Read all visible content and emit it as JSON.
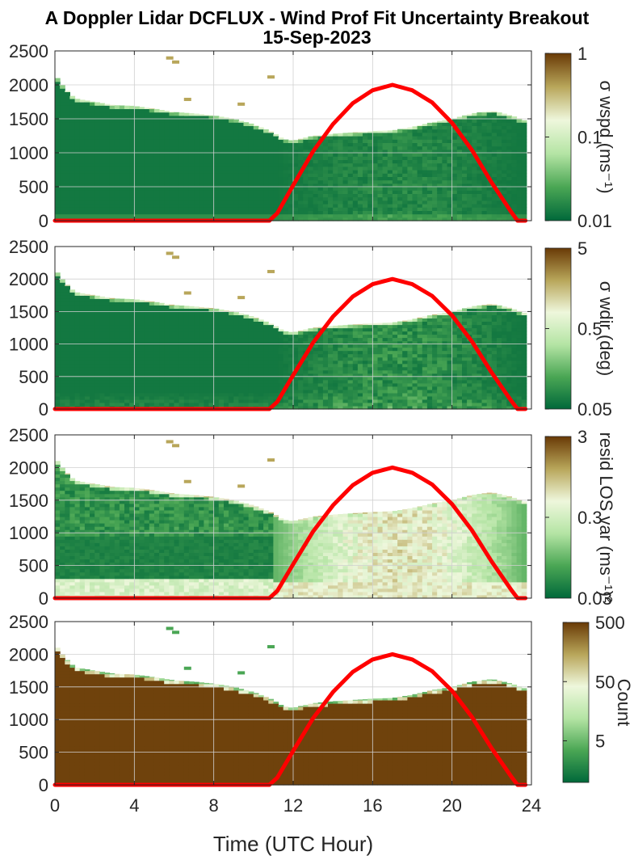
{
  "figure": {
    "title_line1": "A Doppler Lidar DCFLUX - Wind Prof Fit Uncertainty Breakout",
    "title_line2": "15-Sep-2023",
    "xlabel": "Time (UTC Hour)"
  },
  "colors": {
    "green_dark": "#00683a",
    "green_mid": "#4aa654",
    "green_light": "#b4e4a4",
    "pale": "#eef7dc",
    "olive": "#b8a65a",
    "brown": "#693a06",
    "sun_curve": "#ff0000"
  },
  "chart_data": [
    {
      "type": "heatmap",
      "panel": "sigma_wspd",
      "x_range": [
        0,
        24
      ],
      "x_ticks": [
        0,
        4,
        8,
        12,
        16,
        20,
        24
      ],
      "ylim": [
        0,
        2500
      ],
      "y_ticks": [
        0,
        500,
        1000,
        1500,
        2000,
        2500
      ],
      "grid": true,
      "colorbar": {
        "label": "σ wspd (ms⁻¹)",
        "scale": "log",
        "range": [
          0.01,
          1
        ],
        "ticks": [
          "0.01",
          "0.1",
          "1"
        ]
      },
      "data_top_m": {
        "x": [
          0,
          0.5,
          1,
          2,
          3,
          4,
          5,
          6,
          7,
          8,
          9,
          10,
          11,
          11.5,
          12,
          13,
          14,
          15,
          16,
          17,
          18,
          19,
          20,
          21,
          22,
          23,
          23.6
        ],
        "y": [
          2150,
          1950,
          1800,
          1750,
          1700,
          1690,
          1650,
          1600,
          1580,
          1550,
          1500,
          1420,
          1300,
          1200,
          1180,
          1250,
          1280,
          1300,
          1320,
          1330,
          1380,
          1450,
          1500,
          1580,
          1620,
          1550,
          1480
        ]
      },
      "typical_value": "low (mostly 0.01-0.05) with lighter areas in afternoon"
    },
    {
      "type": "heatmap",
      "panel": "sigma_wdir",
      "x_range": [
        0,
        24
      ],
      "x_ticks": [
        0,
        4,
        8,
        12,
        16,
        20,
        24
      ],
      "ylim": [
        0,
        2500
      ],
      "y_ticks": [
        0,
        500,
        1000,
        1500,
        2000,
        2500
      ],
      "grid": true,
      "colorbar": {
        "label": "σ wdir (deg)",
        "scale": "log",
        "range": [
          0.05,
          5
        ],
        "ticks": [
          "0.05",
          "0.5",
          "5"
        ]
      },
      "data_top_m": {
        "x": [
          0,
          0.5,
          1,
          2,
          3,
          4,
          5,
          6,
          7,
          8,
          9,
          10,
          11,
          11.5,
          12,
          13,
          14,
          15,
          16,
          17,
          18,
          19,
          20,
          21,
          22,
          23,
          23.6
        ],
        "y": [
          2150,
          1950,
          1800,
          1750,
          1700,
          1690,
          1650,
          1600,
          1580,
          1550,
          1500,
          1420,
          1300,
          1200,
          1180,
          1250,
          1280,
          1300,
          1320,
          1330,
          1380,
          1450,
          1500,
          1580,
          1620,
          1550,
          1480
        ]
      },
      "typical_value": "low with lighter greens near surface and in afternoon"
    },
    {
      "type": "heatmap",
      "panel": "resid_los_var",
      "x_range": [
        0,
        24
      ],
      "x_ticks": [
        0,
        4,
        8,
        12,
        16,
        20,
        24
      ],
      "ylim": [
        0,
        2500
      ],
      "y_ticks": [
        0,
        500,
        1000,
        1500,
        2000,
        2500
      ],
      "grid": true,
      "colorbar": {
        "label": "resid LOS var (ms⁻¹)²",
        "scale": "log",
        "range": [
          0.03,
          3
        ],
        "ticks": [
          "0.03",
          "0.3",
          "3"
        ]
      },
      "data_top_m": {
        "x": [
          0,
          0.5,
          1,
          2,
          3,
          4,
          5,
          6,
          7,
          8,
          9,
          10,
          11,
          11.5,
          12,
          13,
          14,
          15,
          16,
          17,
          18,
          19,
          20,
          21,
          22,
          23,
          23.6
        ],
        "y": [
          2150,
          1950,
          1800,
          1750,
          1700,
          1690,
          1650,
          1600,
          1580,
          1550,
          1500,
          1420,
          1300,
          1200,
          1180,
          1250,
          1280,
          1300,
          1320,
          1330,
          1380,
          1450,
          1500,
          1580,
          1620,
          1550,
          1480
        ]
      },
      "typical_value": "green at night aloft, tan/olive (~0.3-1) in daytime boundary layer"
    },
    {
      "type": "heatmap",
      "panel": "count",
      "x_range": [
        0,
        24
      ],
      "x_ticks": [
        0,
        4,
        8,
        12,
        16,
        20,
        24
      ],
      "ylim": [
        0,
        2500
      ],
      "y_ticks": [
        0,
        500,
        1000,
        1500,
        2000,
        2500
      ],
      "grid": true,
      "colorbar": {
        "label": "Count",
        "scale": "log",
        "range": [
          1,
          500
        ],
        "ticks": [
          "5",
          "50",
          "500"
        ]
      },
      "data_top_m": {
        "x": [
          0,
          0.5,
          1,
          2,
          3,
          4,
          5,
          6,
          7,
          8,
          9,
          10,
          11,
          11.5,
          12,
          13,
          14,
          15,
          16,
          17,
          18,
          19,
          20,
          21,
          22,
          23,
          23.6
        ],
        "y": [
          2150,
          1950,
          1800,
          1750,
          1700,
          1690,
          1650,
          1600,
          1580,
          1550,
          1500,
          1420,
          1300,
          1200,
          1180,
          1250,
          1280,
          1300,
          1320,
          1330,
          1380,
          1450,
          1500,
          1580,
          1620,
          1550,
          1480
        ]
      },
      "typical_value": "saturated ~500 below top, green fringe at top"
    }
  ],
  "sun_curve": {
    "x": [
      0,
      10.8,
      11.2,
      12,
      13,
      14,
      15,
      16,
      17,
      18,
      19,
      20,
      21,
      22,
      23,
      23.3,
      23.7
    ],
    "y": [
      0,
      0,
      110,
      520,
      1020,
      1420,
      1730,
      1920,
      2000,
      1920,
      1740,
      1440,
      1040,
      560,
      120,
      0,
      0
    ]
  }
}
